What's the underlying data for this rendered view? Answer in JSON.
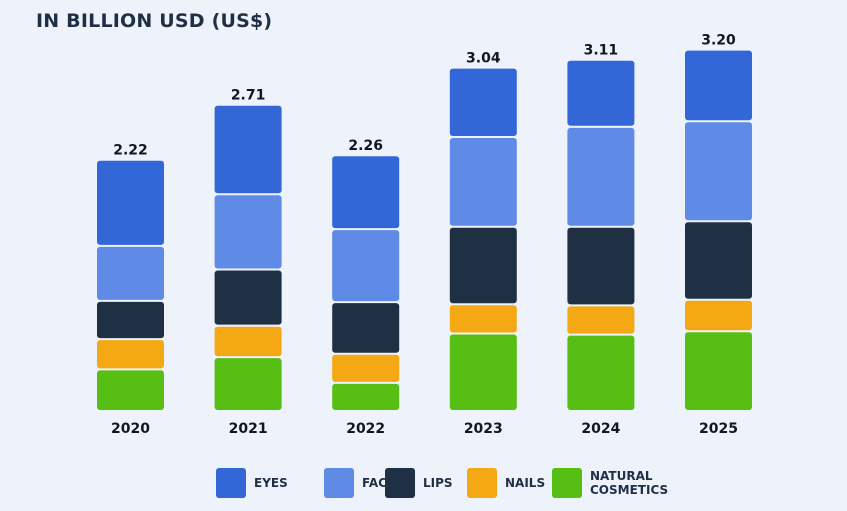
{
  "chart_data": {
    "type": "bar",
    "stacked": true,
    "title": "",
    "ylabel": "IN BILLION USD (US$)",
    "xlabel": "",
    "categories": [
      "2020",
      "2021",
      "2022",
      "2023",
      "2024",
      "2025"
    ],
    "totals": [
      "2.22",
      "2.71",
      "2.26",
      "3.04",
      "3.11",
      "3.20"
    ],
    "ylim": [
      0,
      3.2
    ],
    "grid": false,
    "legend_position": "bottom",
    "series": [
      {
        "name": "EYES",
        "color": "#3366d6",
        "values": [
          0.75,
          0.78,
          0.64,
          0.6,
          0.58,
          0.62
        ]
      },
      {
        "name": "FACE",
        "color": "#5f8ae6",
        "values": [
          0.49,
          0.67,
          0.65,
          0.8,
          0.89,
          0.89
        ]
      },
      {
        "name": "LIPS",
        "color": "#1f3045",
        "values": [
          0.34,
          0.5,
          0.46,
          0.69,
          0.7,
          0.7
        ]
      },
      {
        "name": "NAILS",
        "color": "#f4a813",
        "values": [
          0.27,
          0.28,
          0.26,
          0.26,
          0.26,
          0.28
        ]
      },
      {
        "name": "NATURAL\nCOSMETICS",
        "color": "#57bf14",
        "values": [
          0.37,
          0.48,
          0.25,
          0.69,
          0.68,
          0.71
        ]
      }
    ]
  }
}
